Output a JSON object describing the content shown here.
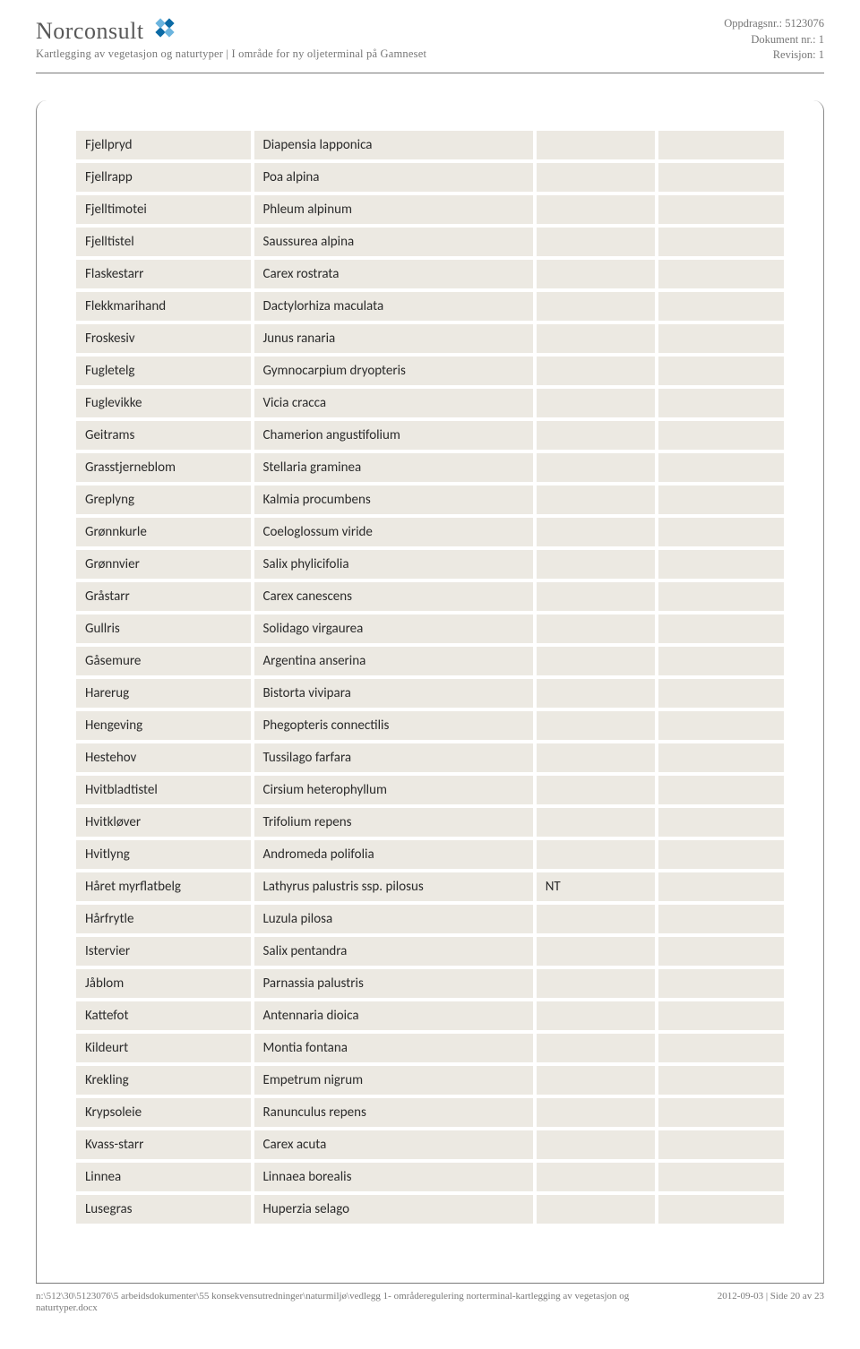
{
  "header": {
    "company": "Norconsult",
    "subtitle": "Kartlegging av vegetasjon og naturtyper | I område for ny oljeterminal på Gamneset",
    "meta": {
      "line1": "Oppdragsnr.: 5123076",
      "line2": "Dokument nr.: 1",
      "line3": "Revisjon: 1"
    },
    "logo_colors": {
      "dark": "#0b6aa5",
      "light": "#6bb4de"
    }
  },
  "table": {
    "background_cell": "#ece9e2",
    "rows": [
      {
        "no": "Fjellpryd",
        "la": "Diapensia lapponica",
        "c3": "",
        "c4": ""
      },
      {
        "no": "Fjellrapp",
        "la": "Poa alpina",
        "c3": "",
        "c4": ""
      },
      {
        "no": "Fjelltimotei",
        "la": "Phleum alpinum",
        "c3": "",
        "c4": ""
      },
      {
        "no": "Fjelltistel",
        "la": "Saussurea alpina",
        "c3": "",
        "c4": ""
      },
      {
        "no": "Flaskestarr",
        "la": "Carex rostrata",
        "c3": "",
        "c4": ""
      },
      {
        "no": "Flekkmarihand",
        "la": "Dactylorhiza maculata",
        "c3": "",
        "c4": ""
      },
      {
        "no": "Froskesiv",
        "la": "Junus ranaria",
        "c3": "",
        "c4": ""
      },
      {
        "no": "Fugletelg",
        "la": "Gymnocarpium dryopteris",
        "c3": "",
        "c4": ""
      },
      {
        "no": "Fuglevikke",
        "la": "Vicia cracca",
        "c3": "",
        "c4": ""
      },
      {
        "no": "Geitrams",
        "la": "Chamerion angustifolium",
        "c3": "",
        "c4": ""
      },
      {
        "no": "Grasstjerneblom",
        "la": "Stellaria graminea",
        "c3": "",
        "c4": ""
      },
      {
        "no": "Greplyng",
        "la": "Kalmia procumbens",
        "c3": "",
        "c4": ""
      },
      {
        "no": "Grønnkurle",
        "la": "Coeloglossum viride",
        "c3": "",
        "c4": ""
      },
      {
        "no": "Grønnvier",
        "la": "Salix phylicifolia",
        "c3": "",
        "c4": ""
      },
      {
        "no": "Gråstarr",
        "la": "Carex canescens",
        "c3": "",
        "c4": ""
      },
      {
        "no": "Gullris",
        "la": "Solidago virgaurea",
        "c3": "",
        "c4": ""
      },
      {
        "no": "Gåsemure",
        "la": "Argentina anserina",
        "c3": "",
        "c4": ""
      },
      {
        "no": "Harerug",
        "la": "Bistorta vivipara",
        "c3": "",
        "c4": ""
      },
      {
        "no": "Hengeving",
        "la": "Phegopteris connectilis",
        "c3": "",
        "c4": ""
      },
      {
        "no": "Hestehov",
        "la": "Tussilago farfara",
        "c3": "",
        "c4": ""
      },
      {
        "no": "Hvitbladtistel",
        "la": "Cirsium heterophyllum",
        "c3": "",
        "c4": ""
      },
      {
        "no": "Hvitkløver",
        "la": "Trifolium repens",
        "c3": "",
        "c4": ""
      },
      {
        "no": "Hvitlyng",
        "la": "Andromeda polifolia",
        "c3": "",
        "c4": ""
      },
      {
        "no": "Håret myrflatbelg",
        "la": "Lathyrus palustris ssp. pilosus",
        "c3": "NT",
        "c4": ""
      },
      {
        "no": "Hårfrytle",
        "la": "Luzula pilosa",
        "c3": "",
        "c4": ""
      },
      {
        "no": "Istervier",
        "la": "Salix pentandra",
        "c3": "",
        "c4": ""
      },
      {
        "no": "Jåblom",
        "la": "Parnassia palustris",
        "c3": "",
        "c4": ""
      },
      {
        "no": "Kattefot",
        "la": "Antennaria dioica",
        "c3": "",
        "c4": ""
      },
      {
        "no": "Kildeurt",
        "la": "Montia fontana",
        "c3": "",
        "c4": ""
      },
      {
        "no": "Krekling",
        "la": "Empetrum nigrum",
        "c3": "",
        "c4": ""
      },
      {
        "no": "Krypsoleie",
        "la": "Ranunculus repens",
        "c3": "",
        "c4": ""
      },
      {
        "no": "Kvass-starr",
        "la": "Carex acuta",
        "c3": "",
        "c4": ""
      },
      {
        "no": "Linnea",
        "la": "Linnaea borealis",
        "c3": "",
        "c4": ""
      },
      {
        "no": "Lusegras",
        "la": "Huperzia selago",
        "c3": "",
        "c4": ""
      }
    ]
  },
  "footer": {
    "path": "n:\\512\\30\\5123076\\5 arbeidsdokumenter\\55 konsekvensutredninger\\naturmiljø\\vedlegg 1- områderegulering norterminal-kartlegging av vegetasjon og naturtyper.docx",
    "right": "2012-09-03 | Side 20 av 23"
  }
}
